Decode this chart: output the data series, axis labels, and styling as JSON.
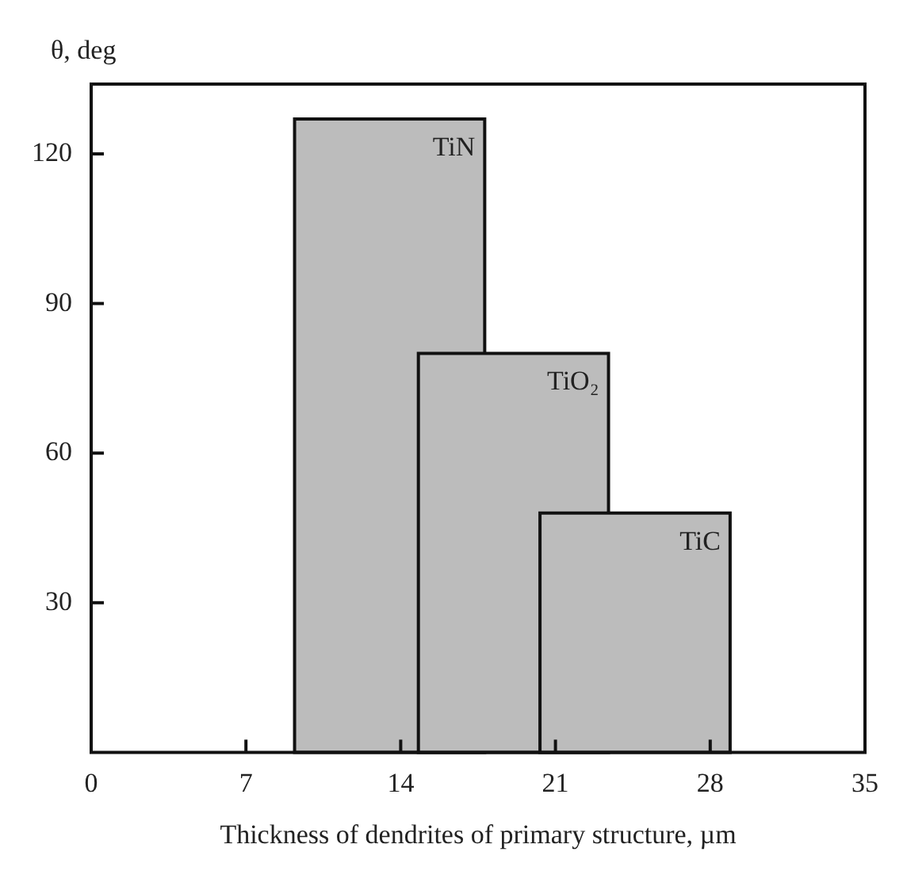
{
  "chart_data": {
    "type": "bar",
    "xlabel": "Thickness of dendrites of primary structure, µm",
    "ylabel": "θ, deg",
    "series": [
      {
        "name": "TiN",
        "color": "#bcbcbc",
        "x": [
          13.5
        ],
        "values": [
          127
        ]
      },
      {
        "name": "TiO₂",
        "color": "#bcbcbc",
        "x": [
          19.1
        ],
        "values": [
          80
        ]
      },
      {
        "name": "TiC",
        "color": "#bcbcbc",
        "x": [
          24.6
        ],
        "values": [
          48
        ]
      }
    ],
    "xlim": [
      0,
      35
    ],
    "xticks": [
      0,
      7,
      14,
      21,
      28,
      35
    ],
    "ylim": [
      0,
      134
    ],
    "yticks": [
      30,
      60,
      90,
      120
    ],
    "grid": false,
    "legend": false
  }
}
